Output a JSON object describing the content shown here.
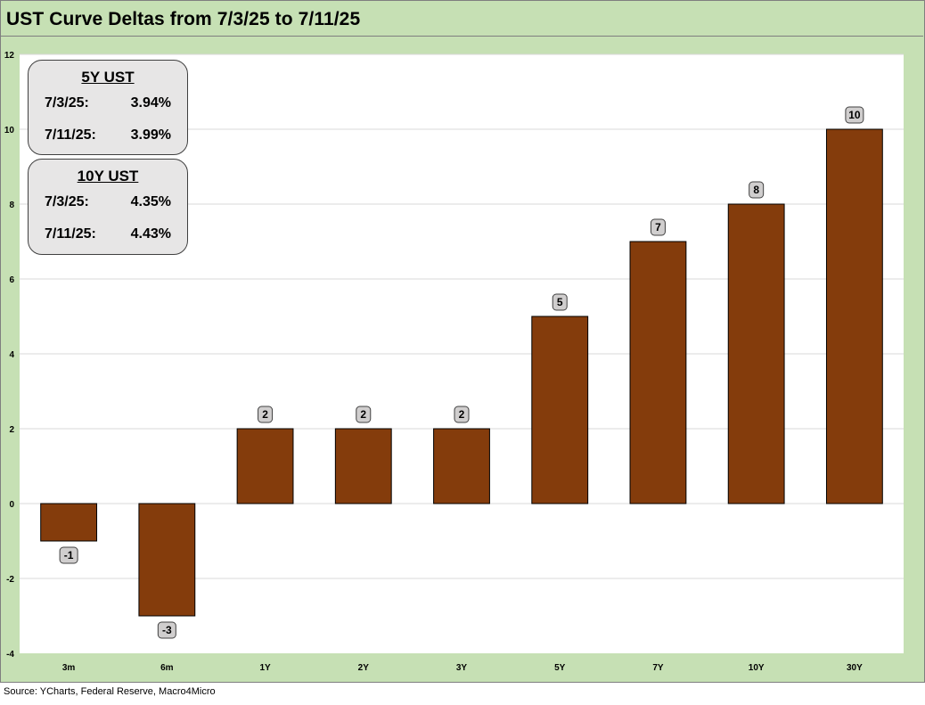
{
  "title": "UST Curve Deltas from 7/3/25 to 7/11/25",
  "source": "Source: YCharts, Federal Reserve, Macro4Micro",
  "colors": {
    "frame": "#c6e0b4",
    "bar": "#843c0c",
    "bar_border": "#000000",
    "grid": "#d9d9d9",
    "label_box": "#d0cece"
  },
  "info_boxes": [
    {
      "title": "5Y UST",
      "rows": [
        {
          "label": "7/3/25:",
          "value": "3.94%"
        },
        {
          "label": "7/11/25:",
          "value": "3.99%"
        }
      ]
    },
    {
      "title": "10Y UST",
      "rows": [
        {
          "label": "7/3/25:",
          "value": "4.35%"
        },
        {
          "label": "7/11/25:",
          "value": "4.43%"
        }
      ]
    }
  ],
  "chart_data": {
    "type": "bar",
    "title": "UST Curve Deltas from 7/3/25 to 7/11/25",
    "categories": [
      "3m",
      "6m",
      "1Y",
      "2Y",
      "3Y",
      "5Y",
      "7Y",
      "10Y",
      "30Y"
    ],
    "values": [
      -1,
      -3,
      2,
      2,
      2,
      5,
      7,
      8,
      10
    ],
    "data_labels": [
      "-1",
      "-3",
      "2",
      "2",
      "2",
      "5",
      "7",
      "8",
      "10"
    ],
    "ylim": [
      -4,
      12
    ],
    "yticks": [
      -4,
      -2,
      0,
      2,
      4,
      6,
      8,
      10,
      12
    ],
    "ytick_labels": [
      "-4",
      "-2",
      "0",
      "2",
      "4",
      "6",
      "8",
      "10",
      "12"
    ],
    "grid": true,
    "legend": "none"
  }
}
